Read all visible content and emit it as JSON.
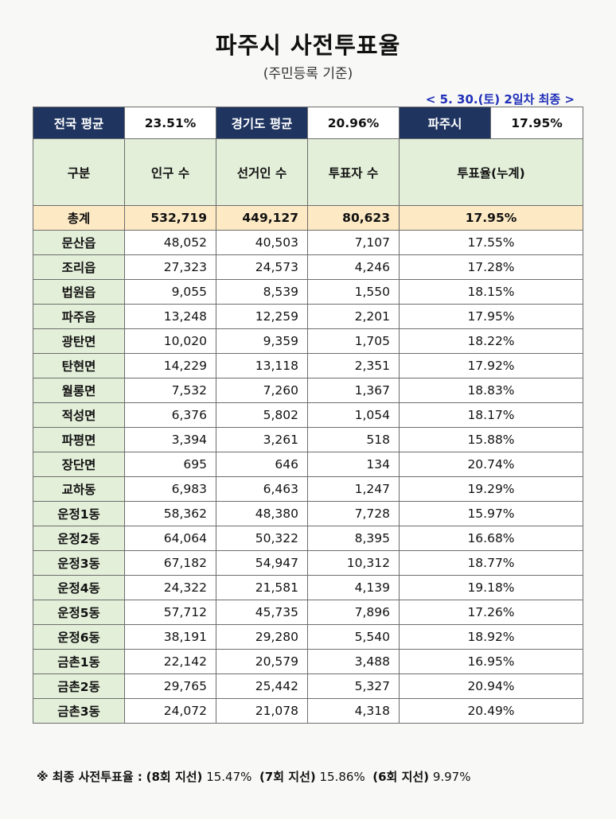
{
  "title": "파주시 사전투표율",
  "subtitle": "(주민등록 기준)",
  "date_note": "< 5. 30.(토) 2일차 최종 >",
  "summary": {
    "national_label": "전국 평균",
    "national_value": "23.51%",
    "gyeonggi_label": "경기도 평균",
    "gyeonggi_value": "20.96%",
    "paju_label": "파주시",
    "paju_value": "17.95%"
  },
  "headers": {
    "area": "구분",
    "population": "인구 수",
    "voters": "선거인 수",
    "turnout_count": "투표자 수",
    "rate": "투표율(누계)"
  },
  "total": {
    "area": "총계",
    "population": "532,719",
    "voters": "449,127",
    "turnout_count": "80,623",
    "rate": "17.95%"
  },
  "rows": [
    {
      "area": "문산읍",
      "population": "48,052",
      "voters": "40,503",
      "turnout_count": "7,107",
      "rate": "17.55%"
    },
    {
      "area": "조리읍",
      "population": "27,323",
      "voters": "24,573",
      "turnout_count": "4,246",
      "rate": "17.28%"
    },
    {
      "area": "법원읍",
      "population": "9,055",
      "voters": "8,539",
      "turnout_count": "1,550",
      "rate": "18.15%"
    },
    {
      "area": "파주읍",
      "population": "13,248",
      "voters": "12,259",
      "turnout_count": "2,201",
      "rate": "17.95%"
    },
    {
      "area": "광탄면",
      "population": "10,020",
      "voters": "9,359",
      "turnout_count": "1,705",
      "rate": "18.22%"
    },
    {
      "area": "탄현면",
      "population": "14,229",
      "voters": "13,118",
      "turnout_count": "2,351",
      "rate": "17.92%"
    },
    {
      "area": "월롱면",
      "population": "7,532",
      "voters": "7,260",
      "turnout_count": "1,367",
      "rate": "18.83%"
    },
    {
      "area": "적성면",
      "population": "6,376",
      "voters": "5,802",
      "turnout_count": "1,054",
      "rate": "18.17%"
    },
    {
      "area": "파평면",
      "population": "3,394",
      "voters": "3,261",
      "turnout_count": "518",
      "rate": "15.88%"
    },
    {
      "area": "장단면",
      "population": "695",
      "voters": "646",
      "turnout_count": "134",
      "rate": "20.74%"
    },
    {
      "area": "교하동",
      "population": "6,983",
      "voters": "6,463",
      "turnout_count": "1,247",
      "rate": "19.29%"
    },
    {
      "area": "운정1동",
      "population": "58,362",
      "voters": "48,380",
      "turnout_count": "7,728",
      "rate": "15.97%"
    },
    {
      "area": "운정2동",
      "population": "64,064",
      "voters": "50,322",
      "turnout_count": "8,395",
      "rate": "16.68%"
    },
    {
      "area": "운정3동",
      "population": "67,182",
      "voters": "54,947",
      "turnout_count": "10,312",
      "rate": "18.77%"
    },
    {
      "area": "운정4동",
      "population": "24,322",
      "voters": "21,581",
      "turnout_count": "4,139",
      "rate": "19.18%"
    },
    {
      "area": "운정5동",
      "population": "57,712",
      "voters": "45,735",
      "turnout_count": "7,896",
      "rate": "17.26%"
    },
    {
      "area": "운정6동",
      "population": "38,191",
      "voters": "29,280",
      "turnout_count": "5,540",
      "rate": "18.92%"
    },
    {
      "area": "금촌1동",
      "population": "22,142",
      "voters": "20,579",
      "turnout_count": "3,488",
      "rate": "16.95%"
    },
    {
      "area": "금촌2동",
      "population": "29,765",
      "voters": "25,442",
      "turnout_count": "5,327",
      "rate": "20.94%"
    },
    {
      "area": "금촌3동",
      "population": "24,072",
      "voters": "21,078",
      "turnout_count": "4,318",
      "rate": "20.49%"
    }
  ],
  "footnote": {
    "prefix": "※ 최종 사전투표율 :",
    "item1_label": "(8회 지선)",
    "item1_value": "15.47%",
    "item2_label": "(7회 지선)",
    "item2_value": "15.86%",
    "item3_label": "(6회 지선)",
    "item3_value": "9.97%"
  }
}
